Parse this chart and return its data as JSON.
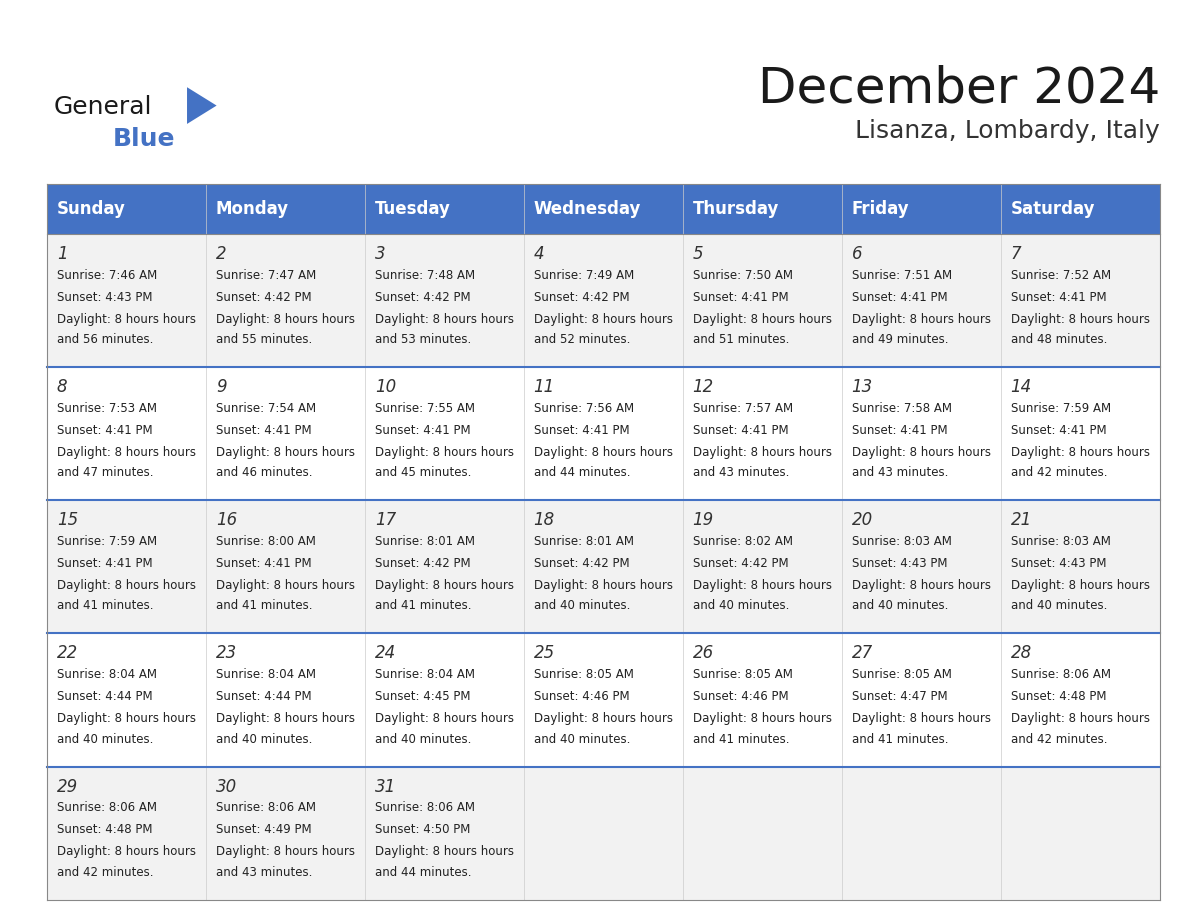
{
  "title": "December 2024",
  "subtitle": "Lisanza, Lombardy, Italy",
  "days_of_week": [
    "Sunday",
    "Monday",
    "Tuesday",
    "Wednesday",
    "Thursday",
    "Friday",
    "Saturday"
  ],
  "header_bg": "#4472C4",
  "header_text": "#FFFFFF",
  "row_bg_odd": "#F2F2F2",
  "row_bg_even": "#FFFFFF",
  "cell_text_color": "#000000",
  "day_num_color": "#333333",
  "divider_color": "#4472C4",
  "calendar_data": [
    {
      "day": 1,
      "dow": 0,
      "week": 0,
      "sunrise": "7:46 AM",
      "sunset": "4:43 PM",
      "daylight": "8 hours and 56 minutes."
    },
    {
      "day": 2,
      "dow": 1,
      "week": 0,
      "sunrise": "7:47 AM",
      "sunset": "4:42 PM",
      "daylight": "8 hours and 55 minutes."
    },
    {
      "day": 3,
      "dow": 2,
      "week": 0,
      "sunrise": "7:48 AM",
      "sunset": "4:42 PM",
      "daylight": "8 hours and 53 minutes."
    },
    {
      "day": 4,
      "dow": 3,
      "week": 0,
      "sunrise": "7:49 AM",
      "sunset": "4:42 PM",
      "daylight": "8 hours and 52 minutes."
    },
    {
      "day": 5,
      "dow": 4,
      "week": 0,
      "sunrise": "7:50 AM",
      "sunset": "4:41 PM",
      "daylight": "8 hours and 51 minutes."
    },
    {
      "day": 6,
      "dow": 5,
      "week": 0,
      "sunrise": "7:51 AM",
      "sunset": "4:41 PM",
      "daylight": "8 hours and 49 minutes."
    },
    {
      "day": 7,
      "dow": 6,
      "week": 0,
      "sunrise": "7:52 AM",
      "sunset": "4:41 PM",
      "daylight": "8 hours and 48 minutes."
    },
    {
      "day": 8,
      "dow": 0,
      "week": 1,
      "sunrise": "7:53 AM",
      "sunset": "4:41 PM",
      "daylight": "8 hours and 47 minutes."
    },
    {
      "day": 9,
      "dow": 1,
      "week": 1,
      "sunrise": "7:54 AM",
      "sunset": "4:41 PM",
      "daylight": "8 hours and 46 minutes."
    },
    {
      "day": 10,
      "dow": 2,
      "week": 1,
      "sunrise": "7:55 AM",
      "sunset": "4:41 PM",
      "daylight": "8 hours and 45 minutes."
    },
    {
      "day": 11,
      "dow": 3,
      "week": 1,
      "sunrise": "7:56 AM",
      "sunset": "4:41 PM",
      "daylight": "8 hours and 44 minutes."
    },
    {
      "day": 12,
      "dow": 4,
      "week": 1,
      "sunrise": "7:57 AM",
      "sunset": "4:41 PM",
      "daylight": "8 hours and 43 minutes."
    },
    {
      "day": 13,
      "dow": 5,
      "week": 1,
      "sunrise": "7:58 AM",
      "sunset": "4:41 PM",
      "daylight": "8 hours and 43 minutes."
    },
    {
      "day": 14,
      "dow": 6,
      "week": 1,
      "sunrise": "7:59 AM",
      "sunset": "4:41 PM",
      "daylight": "8 hours and 42 minutes."
    },
    {
      "day": 15,
      "dow": 0,
      "week": 2,
      "sunrise": "7:59 AM",
      "sunset": "4:41 PM",
      "daylight": "8 hours and 41 minutes."
    },
    {
      "day": 16,
      "dow": 1,
      "week": 2,
      "sunrise": "8:00 AM",
      "sunset": "4:41 PM",
      "daylight": "8 hours and 41 minutes."
    },
    {
      "day": 17,
      "dow": 2,
      "week": 2,
      "sunrise": "8:01 AM",
      "sunset": "4:42 PM",
      "daylight": "8 hours and 41 minutes."
    },
    {
      "day": 18,
      "dow": 3,
      "week": 2,
      "sunrise": "8:01 AM",
      "sunset": "4:42 PM",
      "daylight": "8 hours and 40 minutes."
    },
    {
      "day": 19,
      "dow": 4,
      "week": 2,
      "sunrise": "8:02 AM",
      "sunset": "4:42 PM",
      "daylight": "8 hours and 40 minutes."
    },
    {
      "day": 20,
      "dow": 5,
      "week": 2,
      "sunrise": "8:03 AM",
      "sunset": "4:43 PM",
      "daylight": "8 hours and 40 minutes."
    },
    {
      "day": 21,
      "dow": 6,
      "week": 2,
      "sunrise": "8:03 AM",
      "sunset": "4:43 PM",
      "daylight": "8 hours and 40 minutes."
    },
    {
      "day": 22,
      "dow": 0,
      "week": 3,
      "sunrise": "8:04 AM",
      "sunset": "4:44 PM",
      "daylight": "8 hours and 40 minutes."
    },
    {
      "day": 23,
      "dow": 1,
      "week": 3,
      "sunrise": "8:04 AM",
      "sunset": "4:44 PM",
      "daylight": "8 hours and 40 minutes."
    },
    {
      "day": 24,
      "dow": 2,
      "week": 3,
      "sunrise": "8:04 AM",
      "sunset": "4:45 PM",
      "daylight": "8 hours and 40 minutes."
    },
    {
      "day": 25,
      "dow": 3,
      "week": 3,
      "sunrise": "8:05 AM",
      "sunset": "4:46 PM",
      "daylight": "8 hours and 40 minutes."
    },
    {
      "day": 26,
      "dow": 4,
      "week": 3,
      "sunrise": "8:05 AM",
      "sunset": "4:46 PM",
      "daylight": "8 hours and 41 minutes."
    },
    {
      "day": 27,
      "dow": 5,
      "week": 3,
      "sunrise": "8:05 AM",
      "sunset": "4:47 PM",
      "daylight": "8 hours and 41 minutes."
    },
    {
      "day": 28,
      "dow": 6,
      "week": 3,
      "sunrise": "8:06 AM",
      "sunset": "4:48 PM",
      "daylight": "8 hours and 42 minutes."
    },
    {
      "day": 29,
      "dow": 0,
      "week": 4,
      "sunrise": "8:06 AM",
      "sunset": "4:48 PM",
      "daylight": "8 hours and 42 minutes."
    },
    {
      "day": 30,
      "dow": 1,
      "week": 4,
      "sunrise": "8:06 AM",
      "sunset": "4:49 PM",
      "daylight": "8 hours and 43 minutes."
    },
    {
      "day": 31,
      "dow": 2,
      "week": 4,
      "sunrise": "8:06 AM",
      "sunset": "4:50 PM",
      "daylight": "8 hours and 44 minutes."
    }
  ],
  "num_weeks": 5,
  "logo_text_general": "General",
  "logo_text_blue": "Blue",
  "logo_triangle_color": "#4472C4",
  "logo_general_color": "#1a1a1a",
  "logo_blue_color": "#4472C4"
}
